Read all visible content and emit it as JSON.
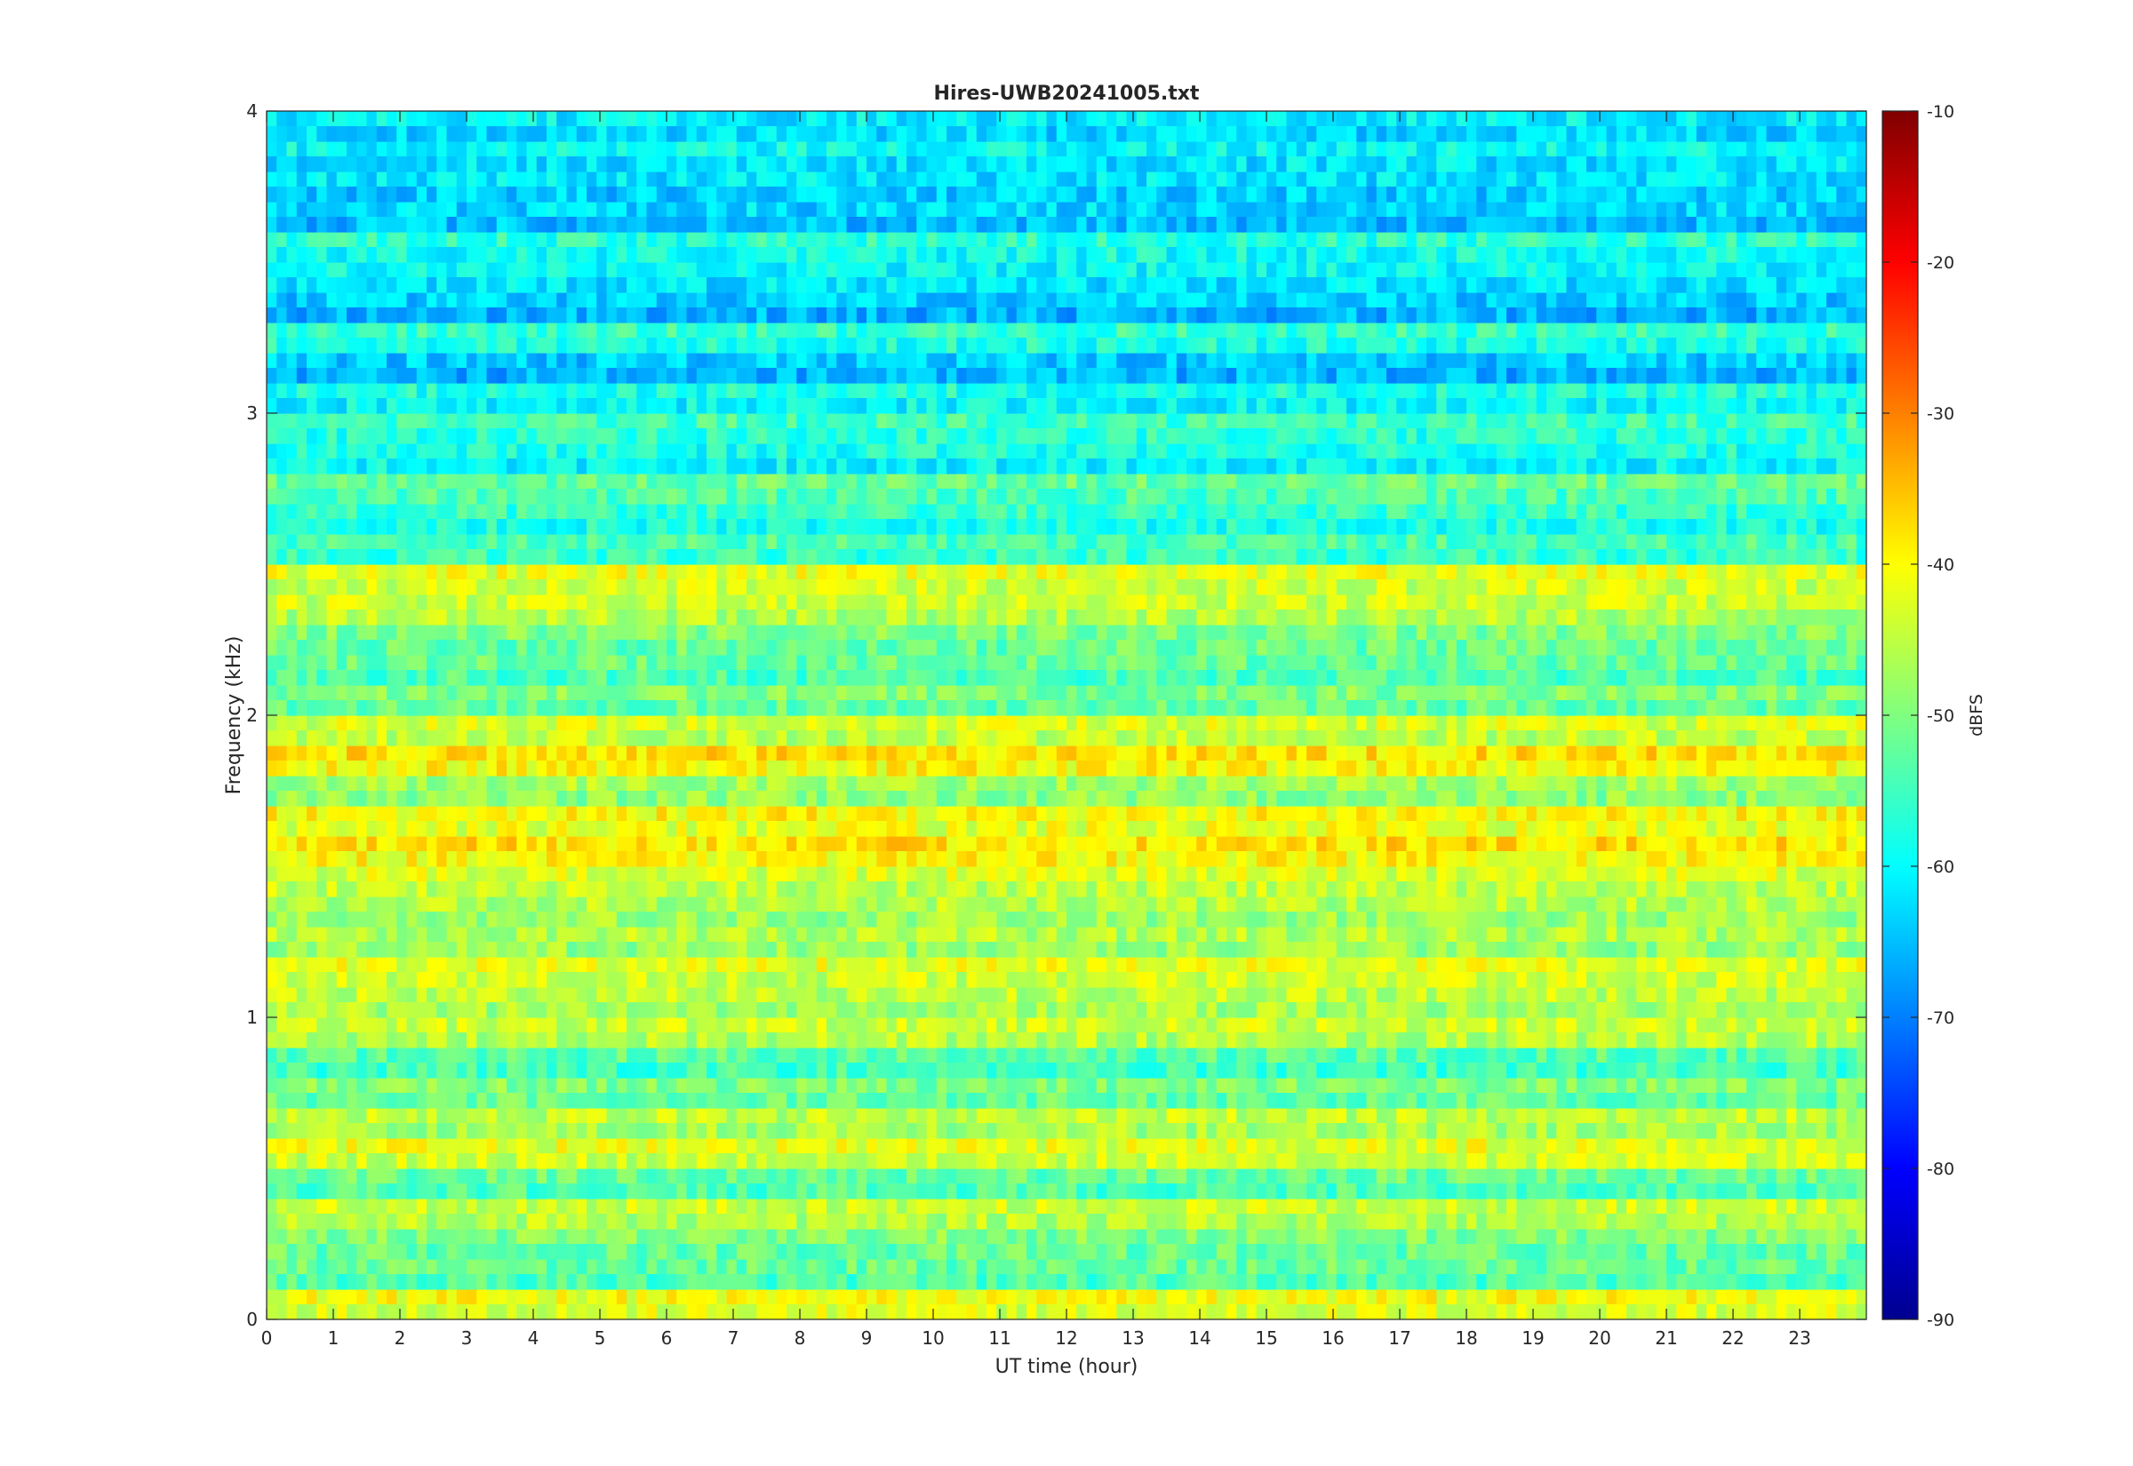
{
  "chart_data": {
    "type": "heatmap",
    "title": "Hires-UWB20241005.txt",
    "xlabel": "UT time (hour)",
    "ylabel": "Frequency (kHz)",
    "colorbar_label": "dBFS",
    "xlim": [
      0,
      24
    ],
    "ylim": [
      0,
      4
    ],
    "clim": [
      -90,
      -10
    ],
    "colormap": "jet",
    "x_ticks": [
      "0",
      "1",
      "2",
      "3",
      "4",
      "5",
      "6",
      "7",
      "8",
      "9",
      "10",
      "11",
      "12",
      "13",
      "14",
      "15",
      "16",
      "17",
      "18",
      "19",
      "20",
      "21",
      "22",
      "23"
    ],
    "y_ticks": [
      "0",
      "1",
      "2",
      "3",
      "4"
    ],
    "colorbar_ticks": [
      "-10",
      "-20",
      "-30",
      "-40",
      "-50",
      "-60",
      "-70",
      "-80",
      "-90"
    ],
    "frequency_bands_khz": [
      {
        "f": 0.05,
        "db": -41
      },
      {
        "f": 0.15,
        "db": -52
      },
      {
        "f": 0.25,
        "db": -50
      },
      {
        "f": 0.35,
        "db": -44
      },
      {
        "f": 0.45,
        "db": -52
      },
      {
        "f": 0.55,
        "db": -42
      },
      {
        "f": 0.65,
        "db": -45
      },
      {
        "f": 0.75,
        "db": -50
      },
      {
        "f": 0.85,
        "db": -53
      },
      {
        "f": 0.95,
        "db": -44
      },
      {
        "f": 1.05,
        "db": -45
      },
      {
        "f": 1.15,
        "db": -42
      },
      {
        "f": 1.25,
        "db": -46
      },
      {
        "f": 1.35,
        "db": -46
      },
      {
        "f": 1.45,
        "db": -43
      },
      {
        "f": 1.55,
        "db": -38
      },
      {
        "f": 1.65,
        "db": -40
      },
      {
        "f": 1.75,
        "db": -47
      },
      {
        "f": 1.85,
        "db": -38
      },
      {
        "f": 1.95,
        "db": -43
      },
      {
        "f": 2.05,
        "db": -50
      },
      {
        "f": 2.15,
        "db": -52
      },
      {
        "f": 2.25,
        "db": -50
      },
      {
        "f": 2.35,
        "db": -44
      },
      {
        "f": 2.45,
        "db": -42
      },
      {
        "f": 2.55,
        "db": -54
      },
      {
        "f": 2.65,
        "db": -56
      },
      {
        "f": 2.75,
        "db": -52
      },
      {
        "f": 2.85,
        "db": -58
      },
      {
        "f": 2.95,
        "db": -55
      },
      {
        "f": 3.05,
        "db": -58
      },
      {
        "f": 3.15,
        "db": -64
      },
      {
        "f": 3.25,
        "db": -56
      },
      {
        "f": 3.35,
        "db": -64
      },
      {
        "f": 3.45,
        "db": -60
      },
      {
        "f": 3.55,
        "db": -57
      },
      {
        "f": 3.65,
        "db": -63
      },
      {
        "f": 3.75,
        "db": -62
      },
      {
        "f": 3.85,
        "db": -60
      },
      {
        "f": 3.95,
        "db": -61
      }
    ]
  }
}
